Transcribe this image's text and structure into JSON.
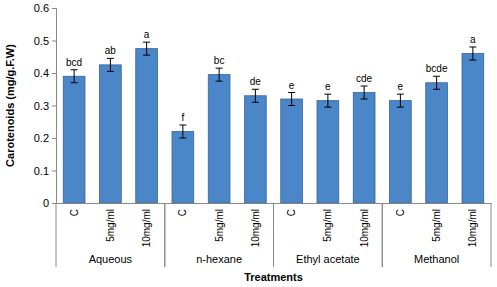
{
  "chart_data": {
    "type": "bar",
    "x_label": "Treatments",
    "y_label": "Carotenoids (mg/g.F.W)",
    "categories": [
      "C",
      "5mg/ml",
      "10mg/ml",
      "C",
      "5mg/ml",
      "10mg/ml",
      "C",
      "5mg/ml",
      "10mg/ml",
      "C",
      "5mg/ml",
      "10mg/ml"
    ],
    "groups": [
      "Aqueous",
      "n-hexane",
      "Ethyl acetate",
      "Methanol"
    ],
    "values": [
      0.39,
      0.425,
      0.475,
      0.22,
      0.395,
      0.33,
      0.32,
      0.315,
      0.34,
      0.315,
      0.37,
      0.46
    ],
    "errors": [
      0.02,
      0.02,
      0.02,
      0.02,
      0.02,
      0.02,
      0.02,
      0.02,
      0.02,
      0.02,
      0.02,
      0.02
    ],
    "annotations": [
      "bcd",
      "ab",
      "a",
      "f",
      "bc",
      "de",
      "e",
      "e",
      "cde",
      "e",
      "bcde",
      "a"
    ],
    "color": "#4a86c8",
    "ylim": [
      0,
      0.6
    ],
    "yticks": [
      0,
      0.1,
      0.2,
      0.3,
      0.4,
      0.5,
      0.6
    ],
    "grid": false
  }
}
